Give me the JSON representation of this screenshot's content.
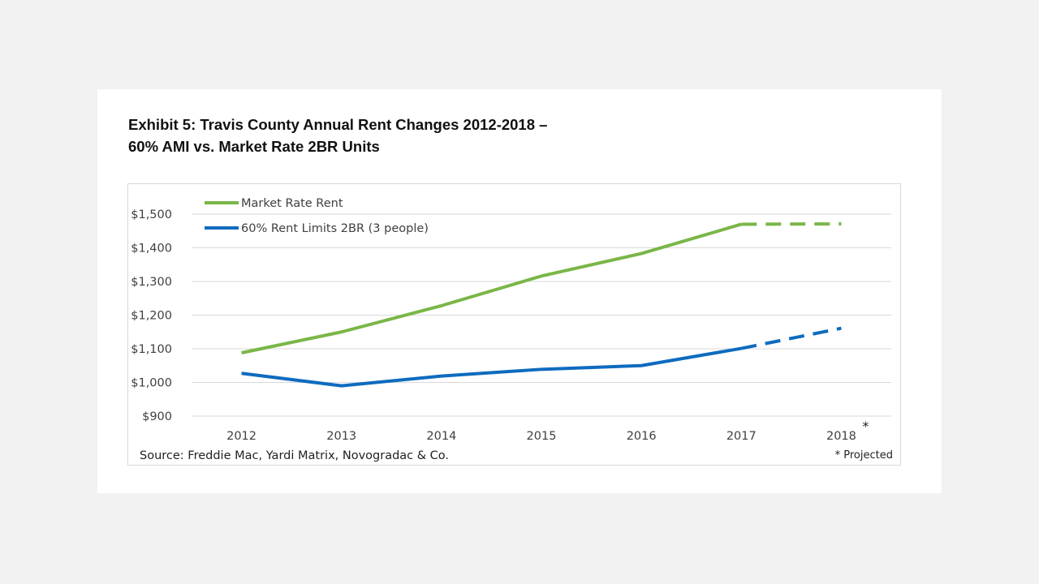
{
  "title_line1": "Exhibit 5: Travis County Annual Rent Changes 2012-2018 –",
  "title_line2": "60% AMI vs. Market Rate 2BR Units",
  "source_note": "Source: Freddie Mac, Yardi Matrix, Novogradac & Co.",
  "projected_note": "* Projected",
  "chart_data": {
    "type": "line",
    "title": "Exhibit 5: Travis County Annual Rent Changes 2012-2018 – 60% AMI vs. Market Rate 2BR Units",
    "categories": [
      "2012",
      "2013",
      "2014",
      "2015",
      "2016",
      "2017",
      "2018"
    ],
    "projected_categories": [
      "2018"
    ],
    "projected_marker": "*",
    "y_tick_labels": [
      "$900",
      "$1,000",
      "$1,100",
      "$1,200",
      "$1,300",
      "$1,400",
      "$1,500"
    ],
    "y_ticks": [
      900,
      1000,
      1100,
      1200,
      1300,
      1400,
      1500
    ],
    "ylim": [
      900,
      1500
    ],
    "grid": true,
    "legend_position": "top-left",
    "series": [
      {
        "name": "Market Rate Rent",
        "color": "#7ab648",
        "values": [
          1088,
          1150,
          1228,
          1316,
          1383,
          1470,
          1471
        ],
        "projected_from_index": 5
      },
      {
        "name": "60% Rent Limits 2BR (3 people)",
        "color": "#0e6bbf",
        "values": [
          1027,
          990,
          1019,
          1039,
          1050,
          1101,
          1161
        ],
        "projected_from_index": 5
      }
    ]
  }
}
